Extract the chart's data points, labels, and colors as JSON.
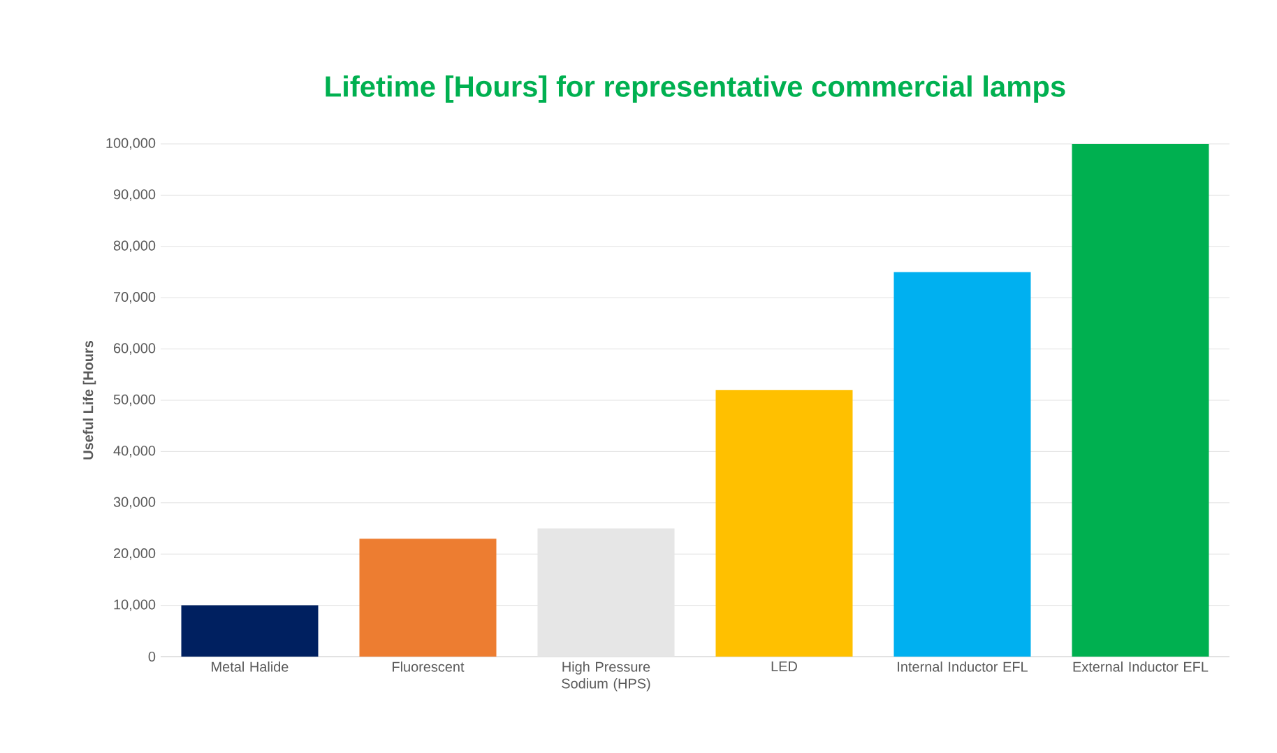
{
  "chart_data": {
    "type": "bar",
    "title": "Lifetime [Hours] for representative commercial lamps",
    "ylabel": "Useful Life [Hours",
    "categories": [
      "Metal Halide",
      "Fluorescent",
      "High Pressure Sodium (HPS)",
      "LED",
      "Internal Inductor EFL",
      "External Inductor EFL"
    ],
    "values": [
      10000,
      23000,
      25000,
      52000,
      75000,
      100000
    ],
    "colors": [
      "#002060",
      "#ed7d31",
      "#e6e6e6",
      "#ffc000",
      "#00b0f0",
      "#00b050"
    ],
    "ylim": [
      0,
      100000
    ],
    "yticks": [
      0,
      {
        "value": 10000,
        "label": "10,000"
      },
      {
        "value": 20000,
        "label": "20,000"
      },
      {
        "value": 30000,
        "label": "30,000"
      },
      {
        "value": 40000,
        "label": "40,000"
      },
      {
        "value": 50000,
        "label": "50,000"
      },
      {
        "value": 60000,
        "label": "60,000"
      },
      {
        "value": 70000,
        "label": "70,000"
      },
      {
        "value": 80000,
        "label": "80,000"
      },
      {
        "value": 90000,
        "label": "90,000"
      },
      {
        "value": 100000,
        "label": "100,000"
      }
    ],
    "grid": "y"
  }
}
